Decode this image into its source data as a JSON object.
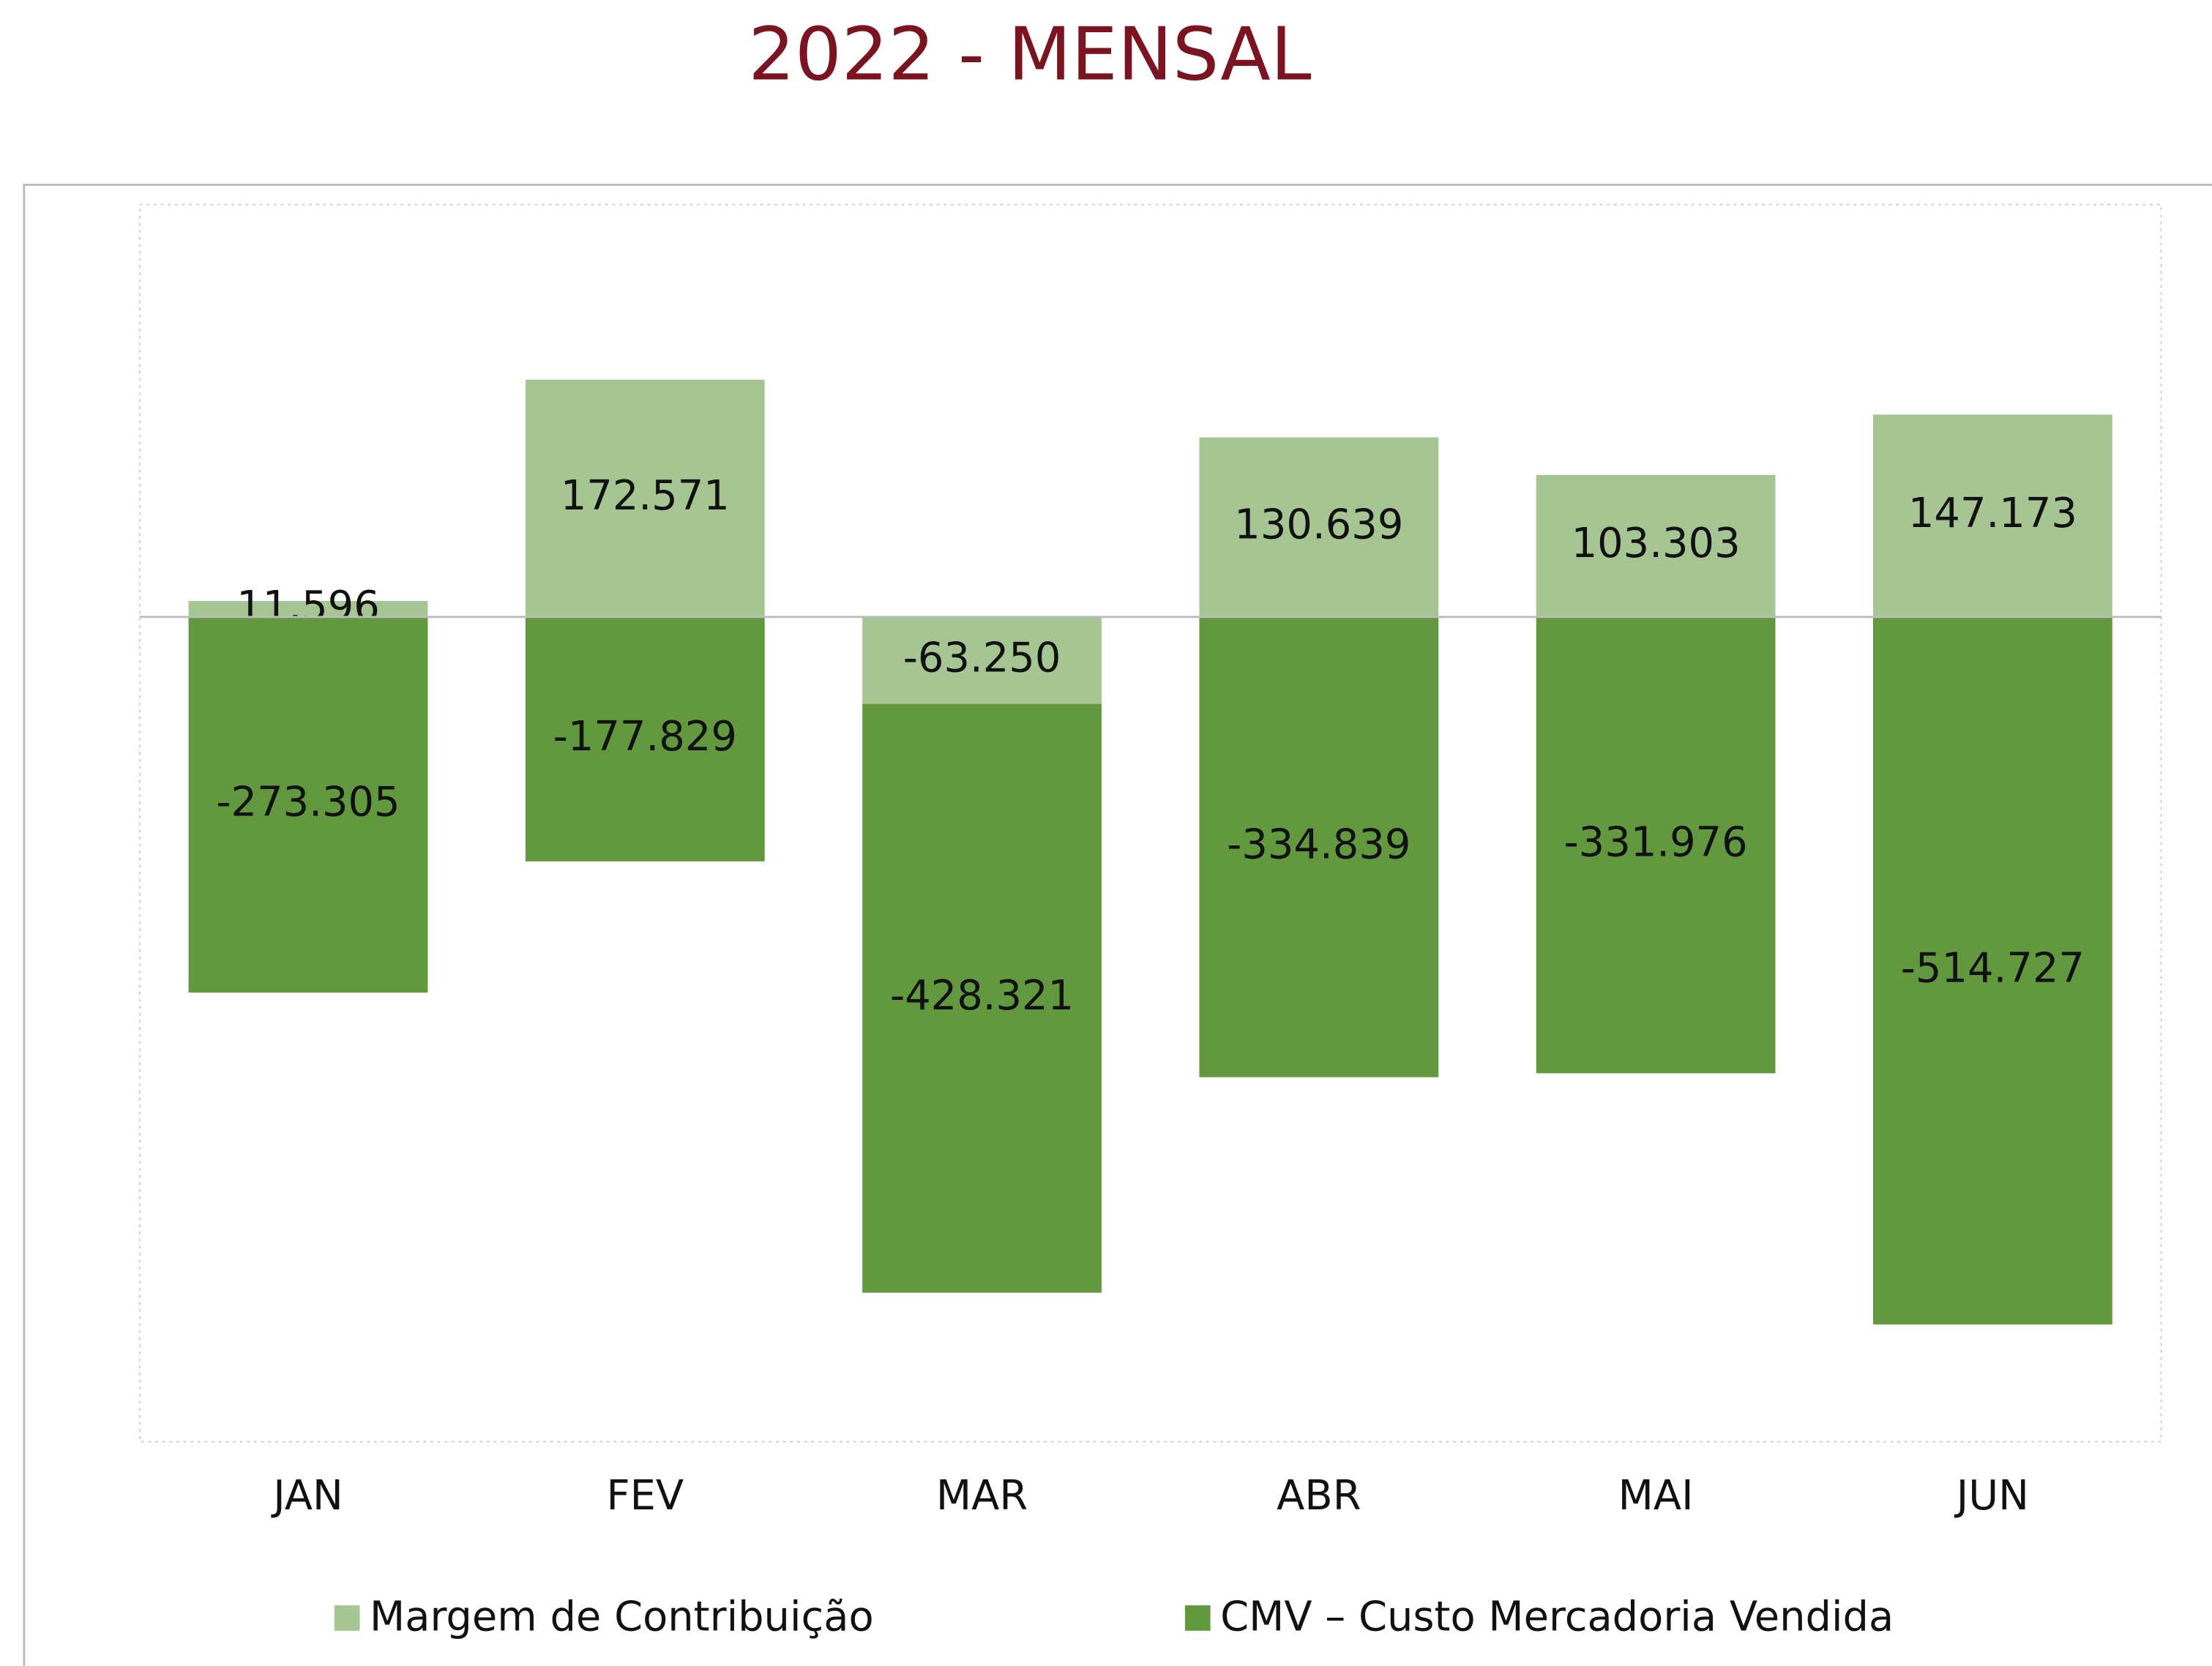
{
  "chart_data": {
    "type": "bar",
    "stacked": true,
    "title": "2022 - MENSAL",
    "categories": [
      "JAN",
      "FEV",
      "MAR",
      "ABR",
      "MAI",
      "JUN"
    ],
    "series": [
      {
        "name": "Margem de Contribuição",
        "color": "#a5c593",
        "values": [
          11596,
          172571,
          -63250,
          130639,
          103303,
          147173
        ],
        "value_labels": [
          "11.596",
          "172.571",
          "-63.250",
          "130.639",
          "103.303",
          "147.173"
        ]
      },
      {
        "name": "CMV – Custo Mercadoria Vendida",
        "color": "#62993f",
        "values": [
          -273305,
          -177829,
          -428321,
          -334839,
          -331976,
          -514727
        ],
        "value_labels": [
          "-273.305",
          "-177.829",
          "-428.321",
          "-334.839",
          "-331.976",
          "-514.727"
        ]
      }
    ],
    "ylim": [
      -600000,
      300000
    ],
    "legend": "bottom"
  }
}
